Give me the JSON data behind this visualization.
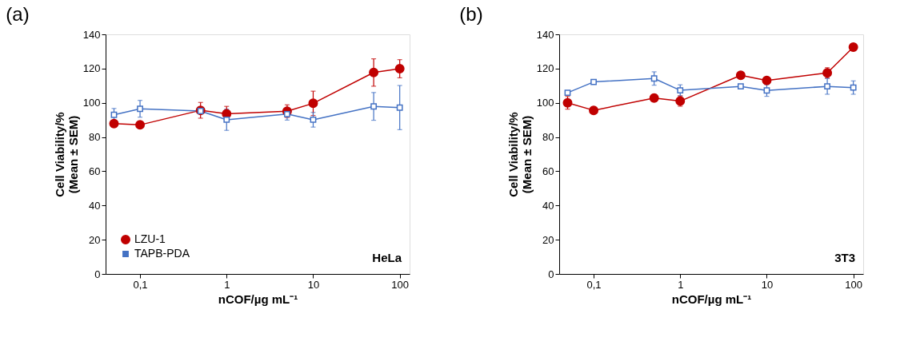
{
  "chart_data": [
    {
      "type": "line",
      "title": "(a)",
      "xlabel": "nCOF/µg mL⁻¹",
      "ylabel": "Cell Viability/%\n(Mean ± SEM)",
      "annotations": [
        "HeLa"
      ],
      "log": "x",
      "grid": false,
      "legend": "bottom left",
      "line_style": "solid",
      "x": [
        0.05,
        0.1,
        0.5,
        1,
        5,
        10,
        50,
        100
      ],
      "xlim": [
        0.04,
        130
      ],
      "xticks": [
        {
          "value": 0.1,
          "label": "0,1"
        },
        1,
        10,
        100
      ],
      "ylim": [
        0,
        140
      ],
      "yticks": [
        0,
        20,
        40,
        60,
        80,
        100,
        120,
        140
      ],
      "series": [
        {
          "name": "LZU-1",
          "color": "#c00000",
          "marker": "circle",
          "values": [
            87.8,
            87.1,
            95.6,
            93.6,
            95.1,
            99.7,
            117.7,
            119.9
          ],
          "errors": [
            2,
            0.5,
            4.6,
            4.3,
            3.7,
            7.1,
            8,
            5.3
          ]
        },
        {
          "name": "TAPB-PDA",
          "color": "#4472c4",
          "marker": "square",
          "values": [
            93,
            96.5,
            95.2,
            90.1,
            93.4,
            90.1,
            97.9,
            97.2
          ],
          "errors": [
            3.7,
            4.9,
            1,
            6.2,
            3.5,
            4.3,
            8.1,
            12.9
          ]
        }
      ]
    },
    {
      "type": "line",
      "title": "(b)",
      "xlabel": "nCOF/µg mL⁻¹",
      "ylabel": "Cell Viability/%\n(Mean ± SEM)",
      "annotations": [
        "3T3"
      ],
      "log": "x",
      "grid": false,
      "legend": "bottom left",
      "line_style": "solid",
      "x": [
        0.05,
        0.1,
        0.5,
        1,
        5,
        10,
        50,
        100
      ],
      "xlim": [
        0.04,
        130
      ],
      "xticks": [
        {
          "value": 0.1,
          "label": "0,1"
        },
        1,
        10,
        100
      ],
      "ylim": [
        0,
        140
      ],
      "yticks": [
        0,
        20,
        40,
        60,
        80,
        100,
        120,
        140
      ],
      "series": [
        {
          "name": "LZU-1",
          "color": "#c00000",
          "marker": "circle",
          "values": [
            100,
            95.6,
            102.8,
            101,
            116.1,
            113,
            117.5,
            132.5
          ],
          "errors": [
            3.7,
            0.5,
            2.1,
            3,
            0.7,
            2,
            3,
            2.1
          ]
        },
        {
          "name": "TAPB-PDA",
          "color": "#4472c4",
          "marker": "square",
          "values": [
            105.9,
            112.2,
            114.2,
            107.3,
            109.6,
            107.2,
            109.6,
            108.9
          ],
          "errors": [
            1,
            1,
            3.9,
            3.2,
            1,
            3.4,
            4.6,
            3.9
          ]
        }
      ]
    }
  ]
}
